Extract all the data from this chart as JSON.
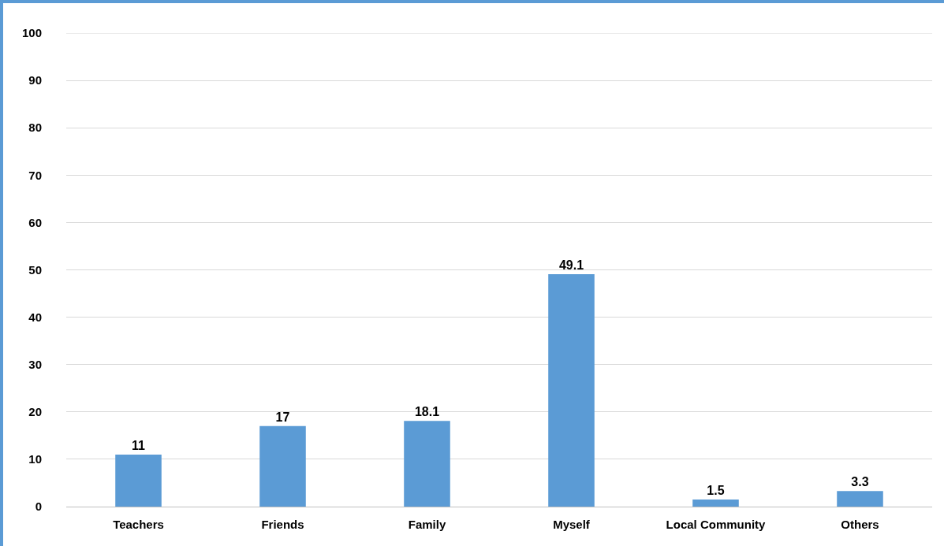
{
  "chart_data": {
    "type": "bar",
    "categories": [
      "Teachers",
      "Friends",
      "Family",
      "Myself",
      "Local Community",
      "Others"
    ],
    "values": [
      11,
      17,
      18.1,
      49.1,
      1.5,
      3.3
    ],
    "color": "#5b9bd5",
    "ylim": [
      0,
      100
    ],
    "yticks": [
      0,
      10,
      20,
      30,
      40,
      50,
      60,
      70,
      80,
      90,
      100
    ],
    "grid": "y",
    "data_labels": true
  }
}
